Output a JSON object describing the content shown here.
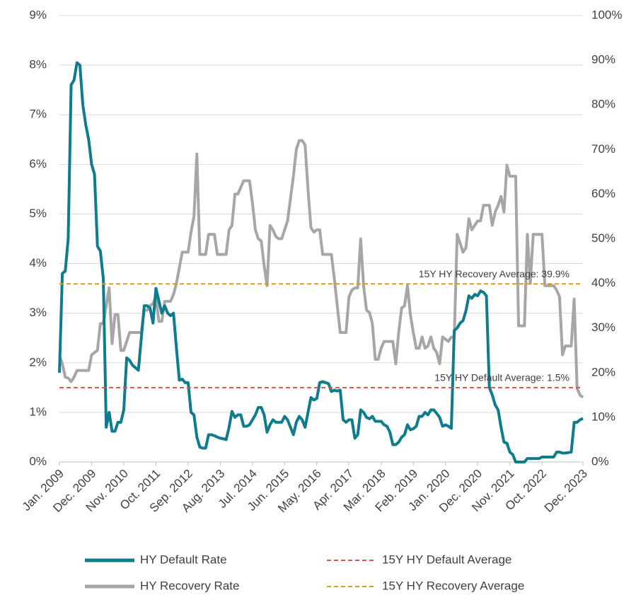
{
  "chart_data": {
    "type": "line",
    "categories": [
      "Jan. 2009",
      null,
      null,
      null,
      null,
      null,
      null,
      null,
      null,
      null,
      null,
      "Dec. 2009",
      null,
      null,
      null,
      null,
      null,
      null,
      null,
      null,
      null,
      null,
      "Nov. 2010",
      null,
      null,
      null,
      null,
      null,
      null,
      null,
      null,
      null,
      null,
      "Oct. 2011",
      null,
      null,
      null,
      null,
      null,
      null,
      null,
      null,
      null,
      null,
      "Sep. 2012",
      null,
      null,
      null,
      null,
      null,
      null,
      null,
      null,
      null,
      null,
      "Aug. 2013",
      null,
      null,
      null,
      null,
      null,
      null,
      null,
      null,
      null,
      null,
      "Jul. 2014",
      null,
      null,
      null,
      null,
      null,
      null,
      null,
      null,
      null,
      null,
      "Jun. 2015",
      null,
      null,
      null,
      null,
      null,
      null,
      null,
      null,
      null,
      null,
      "May. 2016",
      null,
      null,
      null,
      null,
      null,
      null,
      null,
      null,
      null,
      null,
      "Apr. 2017",
      null,
      null,
      null,
      null,
      null,
      null,
      null,
      null,
      null,
      null,
      "Mar. 2018",
      null,
      null,
      null,
      null,
      null,
      null,
      null,
      null,
      null,
      null,
      "Feb. 2019",
      null,
      null,
      null,
      null,
      null,
      null,
      null,
      null,
      null,
      null,
      "Jan. 2020",
      null,
      null,
      null,
      null,
      null,
      null,
      null,
      null,
      null,
      null,
      "Dec. 2020",
      null,
      null,
      null,
      null,
      null,
      null,
      null,
      null,
      null,
      null,
      "Nov. 2021",
      null,
      null,
      null,
      null,
      null,
      null,
      null,
      null,
      null,
      null,
      "Oct. 2022",
      null,
      null,
      null,
      null,
      null,
      null,
      null,
      null,
      null,
      null,
      null,
      null,
      null,
      "Dec. 2023"
    ],
    "series": [
      {
        "name": "HY Default Rate",
        "color": "#0e7c8c",
        "axis": "y",
        "values": [
          1.8,
          3.8,
          3.85,
          4.5,
          7.6,
          7.7,
          8.05,
          8.0,
          7.2,
          6.8,
          6.5,
          6.0,
          5.8,
          4.35,
          4.25,
          3.7,
          0.7,
          1.0,
          0.62,
          0.62,
          0.8,
          0.8,
          1.05,
          2.1,
          2.05,
          1.95,
          1.9,
          1.85,
          2.5,
          3.15,
          3.15,
          3.1,
          2.8,
          3.5,
          3.25,
          3.0,
          3.15,
          3.0,
          2.95,
          3.0,
          2.3,
          1.65,
          1.67,
          1.6,
          1.6,
          1.0,
          0.95,
          0.5,
          0.3,
          0.28,
          0.28,
          0.55,
          0.55,
          0.53,
          0.5,
          0.48,
          0.47,
          0.45,
          0.7,
          1.02,
          0.9,
          0.95,
          0.95,
          0.72,
          0.72,
          0.75,
          0.85,
          0.95,
          1.1,
          1.1,
          0.95,
          0.6,
          0.75,
          0.85,
          0.8,
          0.8,
          0.8,
          0.92,
          0.85,
          0.7,
          0.55,
          0.8,
          0.92,
          0.85,
          0.7,
          1.0,
          1.3,
          1.25,
          1.28,
          1.6,
          1.62,
          1.6,
          1.58,
          1.42,
          1.45,
          1.43,
          1.45,
          0.85,
          0.8,
          0.85,
          0.85,
          0.48,
          0.55,
          1.05,
          1.0,
          0.9,
          0.87,
          0.92,
          0.82,
          0.82,
          0.82,
          0.75,
          0.72,
          0.6,
          0.35,
          0.35,
          0.4,
          0.5,
          0.55,
          0.75,
          0.65,
          0.67,
          0.72,
          0.92,
          0.92,
          1.0,
          0.95,
          1.05,
          1.05,
          0.98,
          0.9,
          0.72,
          0.75,
          0.72,
          0.68,
          2.65,
          2.7,
          2.8,
          2.85,
          3.05,
          3.35,
          3.3,
          3.38,
          3.35,
          3.45,
          3.42,
          3.35,
          1.5,
          1.35,
          1.15,
          1.05,
          0.7,
          0.4,
          0.38,
          0.2,
          0.15,
          0,
          0,
          0,
          0,
          0.07,
          0.07,
          0.07,
          0.07,
          0.07,
          0.1,
          0.1,
          0.1,
          0.1,
          0.1,
          0.2,
          0.2,
          0.18,
          0.18,
          0.19,
          0.2,
          0.8,
          0.8,
          0.85,
          0.88
        ]
      },
      {
        "name": "HY Recovery Rate",
        "color": "#a6a6a6",
        "axis": "y2",
        "values": [
          23.8,
          22,
          19,
          18.8,
          18,
          19,
          20.5,
          20.5,
          20.5,
          20.5,
          20.5,
          24,
          24.5,
          25,
          31,
          31,
          35,
          39,
          26.5,
          33,
          33,
          25,
          25,
          27,
          29,
          29,
          29,
          29,
          29,
          34,
          34,
          35,
          35.5,
          37,
          31.5,
          31.5,
          36,
          36,
          36,
          37.5,
          40,
          43.5,
          47,
          47,
          47,
          51.5,
          55,
          69,
          46.5,
          46.5,
          46.5,
          51,
          51,
          51,
          46.5,
          46.5,
          46.5,
          46.5,
          52,
          53,
          60,
          60,
          61.5,
          63,
          63,
          63,
          58,
          52,
          50,
          49.5,
          44,
          39.5,
          53,
          52,
          50.5,
          50,
          50,
          52,
          54,
          59,
          64,
          70,
          72,
          72,
          71,
          61,
          52.5,
          51.5,
          52,
          52,
          46.5,
          46.5,
          46.5,
          46.5,
          41,
          35,
          29,
          29,
          29,
          37,
          38.5,
          39,
          39,
          50,
          39.5,
          34,
          33.5,
          31,
          23,
          23,
          25.5,
          27,
          27,
          27,
          27,
          22,
          29,
          34.5,
          35,
          39.5,
          33,
          29,
          25.5,
          25.5,
          28,
          25.5,
          26,
          28,
          25.5,
          24.5,
          22,
          28,
          27.5,
          27,
          28,
          28,
          51,
          49,
          47,
          48,
          54.5,
          52,
          53,
          54,
          54,
          57.5,
          57.5,
          57.5,
          53,
          56,
          57.5,
          59.5,
          56,
          66.5,
          64,
          64,
          64,
          30.5,
          30.5,
          30.5,
          51,
          40,
          51,
          51,
          51,
          51,
          39.5,
          39.5,
          39.5,
          39.5,
          38.5,
          37,
          24,
          26,
          26,
          26,
          36.5,
          16.5,
          15,
          14.5
        ]
      }
    ],
    "reference_lines": [
      {
        "name": "15Y HY Default Average",
        "value": 1.5,
        "axis": "y",
        "color": "#d9534f",
        "annotation": "15Y HY Default Average: 1.5%"
      },
      {
        "name": "15Y HY Recovery Average",
        "value": 39.9,
        "axis": "y2",
        "color": "#d4a017",
        "annotation": "15Y HY Recovery Average: 39.9%"
      }
    ],
    "ylim": [
      0,
      9
    ],
    "yticks": [
      {
        "value": 0,
        "label": "0%"
      },
      {
        "value": 1,
        "label": "1%"
      },
      {
        "value": 2,
        "label": "2%"
      },
      {
        "value": 3,
        "label": "3%"
      },
      {
        "value": 4,
        "label": "4%"
      },
      {
        "value": 5,
        "label": "5%"
      },
      {
        "value": 6,
        "label": "6%"
      },
      {
        "value": 7,
        "label": "7%"
      },
      {
        "value": 8,
        "label": "8%"
      },
      {
        "value": 9,
        "label": "9%"
      }
    ],
    "y2lim": [
      0,
      100
    ],
    "y2ticks": [
      {
        "value": 0,
        "label": "0%"
      },
      {
        "value": 10,
        "label": "10%"
      },
      {
        "value": 20,
        "label": "20%"
      },
      {
        "value": 30,
        "label": "30%"
      },
      {
        "value": 40,
        "label": "40%"
      },
      {
        "value": 50,
        "label": "50%"
      },
      {
        "value": 60,
        "label": "60%"
      },
      {
        "value": 70,
        "label": "70%"
      },
      {
        "value": 80,
        "label": "80%"
      },
      {
        "value": 90,
        "label": "90%"
      },
      {
        "value": 100,
        "label": "100%"
      }
    ],
    "grid": true,
    "legend": "bottom"
  }
}
